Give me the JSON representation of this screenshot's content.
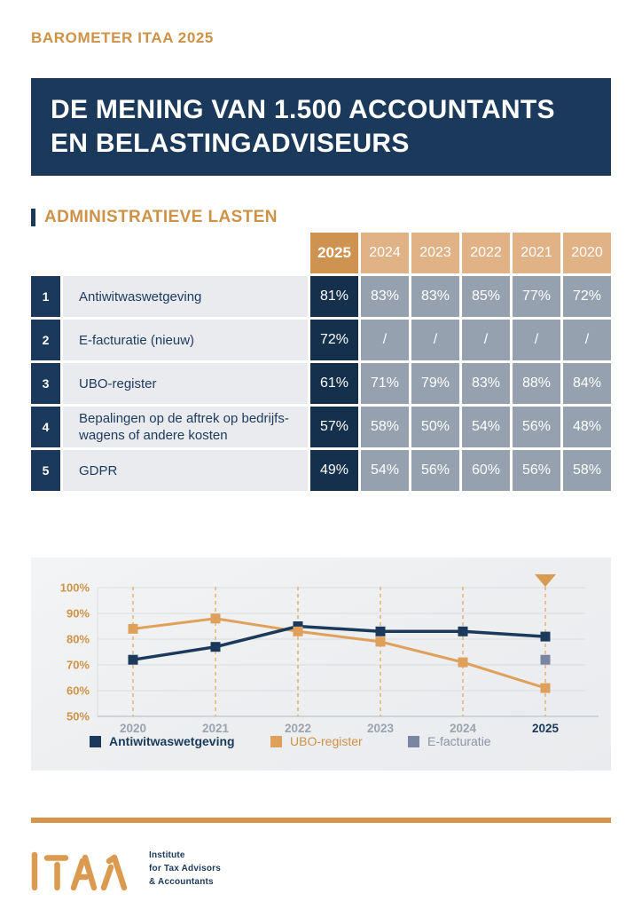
{
  "page": {
    "kicker": "BAROMETER ITAA 2025",
    "banner_lines": [
      "DE MENING VAN 1.500 ACCOUNTANTS",
      "EN BELASTINGADVISEURS"
    ],
    "section_title": "ADMINISTRATIEVE LASTEN"
  },
  "table": {
    "year_headers": [
      "2025",
      "2024",
      "2023",
      "2022",
      "2021",
      "2020"
    ],
    "rows": [
      {
        "num": "1",
        "label": "Antiwitwaswetgeving",
        "values": [
          "81%",
          "83%",
          "83%",
          "85%",
          "77%",
          "72%"
        ]
      },
      {
        "num": "2",
        "label": "E-facturatie (nieuw)",
        "values": [
          "72%",
          "/",
          "/",
          "/",
          "/",
          "/"
        ]
      },
      {
        "num": "3",
        "label": "UBO-register",
        "values": [
          "61%",
          "71%",
          "79%",
          "83%",
          "88%",
          "84%"
        ]
      },
      {
        "num": "4",
        "label": "Bepalingen op de aftrek op bedrijfs-wagens of andere kosten",
        "values": [
          "57%",
          "58%",
          "50%",
          "54%",
          "56%",
          "48%"
        ]
      },
      {
        "num": "5",
        "label": "GDPR",
        "values": [
          "49%",
          "54%",
          "56%",
          "60%",
          "56%",
          "58%"
        ]
      }
    ]
  },
  "chart_data": {
    "type": "line",
    "x": [
      "2020",
      "2021",
      "2022",
      "2023",
      "2024",
      "2025"
    ],
    "series": [
      {
        "name": "Antiwitwaswetgeving",
        "color": "#1B3A5B",
        "values": [
          72,
          77,
          85,
          83,
          83,
          81
        ]
      },
      {
        "name": "UBO-register",
        "color": "#DFA05C",
        "values": [
          84,
          88,
          83,
          79,
          71,
          61
        ]
      },
      {
        "name": "E-facturatie",
        "color": "#7B84A0",
        "values": [
          null,
          null,
          null,
          null,
          null,
          72
        ]
      }
    ],
    "ylim": [
      50,
      100
    ],
    "yticks": [
      "100%",
      "90%",
      "80%",
      "70%",
      "60%",
      "50%"
    ],
    "highlight_year": "2025",
    "grid": true,
    "legend_position": "bottom"
  },
  "footer": {
    "tagline_lines": [
      "Institute",
      "for Tax Advisors",
      "& Accountants"
    ]
  },
  "colors": {
    "accent_gold": "#CE9247",
    "gold_header_current": "#CE9350",
    "gold_header_past": "#E1B285",
    "navy": "#1B3A5B",
    "navy_cell": "#15304C",
    "gray_cell": "#96A1AF",
    "row_bg": "#E9EBEE",
    "gridline": "#DADDE0",
    "dashed_line": "#E2AD6E",
    "xlabel_gray": "#9AA3AE"
  }
}
